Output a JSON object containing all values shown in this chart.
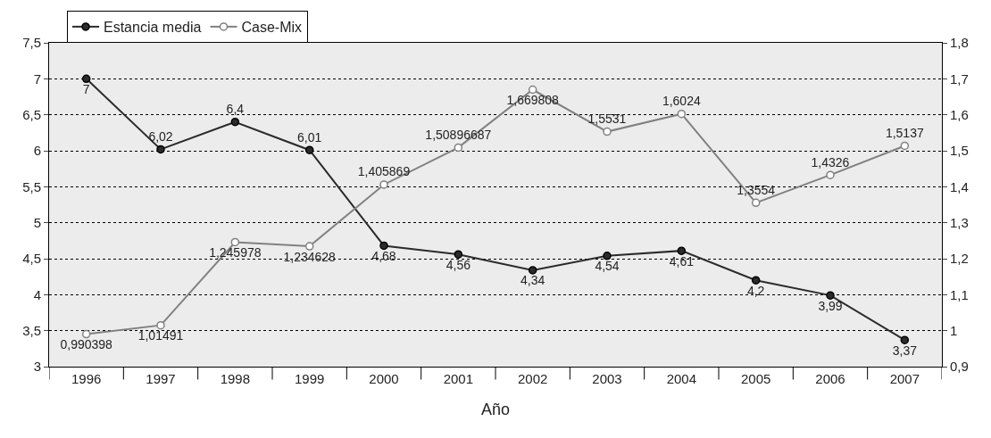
{
  "chart_data": {
    "type": "line",
    "xlabel": "Año",
    "categories": [
      "1996",
      "1997",
      "1998",
      "1999",
      "2000",
      "2001",
      "2002",
      "2003",
      "2004",
      "2005",
      "2006",
      "2007"
    ],
    "series": [
      {
        "name": "Estancia media",
        "color": "#2b2b2b",
        "values": [
          7,
          6.02,
          6.4,
          6.01,
          4.68,
          4.56,
          4.34,
          4.54,
          4.61,
          4.2,
          3.99,
          3.37
        ],
        "value_labels": [
          "7",
          "6,02",
          "6,4",
          "6,01",
          "4,68",
          "4,56",
          "4,34",
          "4,54",
          "4,61",
          "4,2",
          "3,99",
          "3,37"
        ]
      },
      {
        "name": "Case-Mix",
        "color": "#808080",
        "axis": "y2",
        "values": [
          0.990398,
          1.01491,
          1.245978,
          1.234628,
          1.405869,
          1.50896687,
          1.669808,
          1.5531,
          1.6024,
          1.3554,
          1.4326,
          1.5137
        ],
        "value_labels": [
          "0,990398",
          "1,01491",
          "1,245978",
          "1,234628",
          "1,405869",
          "1,50896687",
          "1,669808",
          "1,5531",
          "1,6024",
          "1,3554",
          "1,4326",
          "1,5137"
        ]
      }
    ],
    "ylim": [
      3,
      7.5
    ],
    "yticks": [
      3,
      {
        "value": 3.5,
        "label": "3,5"
      },
      4,
      {
        "value": 4.5,
        "label": "4,5"
      },
      5,
      {
        "value": 5.5,
        "label": "5,5"
      },
      6,
      {
        "value": 6.5,
        "label": "6,5"
      },
      7,
      {
        "value": 7.5,
        "label": "7,5"
      }
    ],
    "y2lim": [
      0.9,
      1.8
    ],
    "y2ticks": [
      {
        "value": 0.9,
        "label": "0,9"
      },
      1,
      {
        "value": 1.1,
        "label": "1,1"
      },
      {
        "value": 1.2,
        "label": "1,2"
      },
      {
        "value": 1.3,
        "label": "1,3"
      },
      {
        "value": 1.4,
        "label": "1,4"
      },
      {
        "value": 1.5,
        "label": "1,5"
      },
      {
        "value": 1.6,
        "label": "1,6"
      },
      {
        "value": 1.7,
        "label": "1,7"
      },
      {
        "value": 1.8,
        "label": "1,8"
      }
    ],
    "grid": "y",
    "legend": "top left",
    "marker": "circle",
    "line_style": "solid"
  }
}
